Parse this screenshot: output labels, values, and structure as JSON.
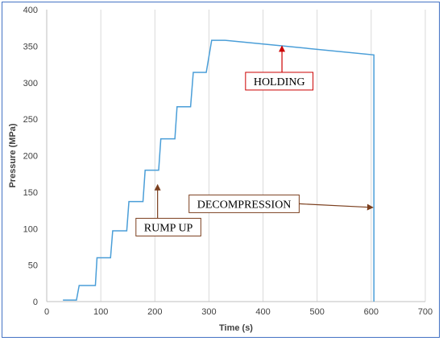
{
  "chart_data": {
    "type": "line",
    "xlabel": "Time (s)",
    "ylabel": "Pressure (MPa)",
    "xlim": [
      0,
      700
    ],
    "ylim": [
      0,
      400
    ],
    "xticks": [
      0,
      100,
      200,
      300,
      400,
      500,
      600,
      700
    ],
    "yticks": [
      0,
      50,
      100,
      150,
      200,
      250,
      300,
      350,
      400
    ],
    "grid": "vertical",
    "line_color": "#4a9ed8",
    "series": [
      {
        "x": [
          30,
          55,
          60,
          90,
          93,
          118,
          122,
          148,
          152,
          178,
          182,
          207,
          211,
          237,
          241,
          266,
          271,
          295,
          305,
          330,
          605,
          605
        ],
        "y": [
          2,
          2,
          22,
          22,
          60,
          60,
          97,
          97,
          137,
          137,
          180,
          180,
          223,
          223,
          267,
          267,
          314,
          314,
          358,
          358,
          338,
          0
        ]
      }
    ],
    "annotations": [
      {
        "text": "HOLDING",
        "arrow_color": "#cc0000",
        "target": [
          435,
          350
        ],
        "box_center": [
          430,
          302
        ]
      },
      {
        "text": "RUMP UP",
        "arrow_color": "#7b3f1e",
        "target": [
          205,
          160
        ],
        "box_center": [
          225,
          102
        ]
      },
      {
        "text": "DECOMPRESSION",
        "arrow_color": "#7b3f1e",
        "target": [
          603,
          129
        ],
        "box_center": [
          365,
          134
        ]
      }
    ]
  }
}
